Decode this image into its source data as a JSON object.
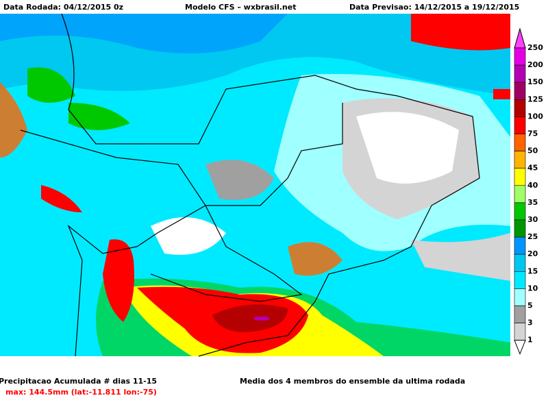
{
  "header": {
    "left": "Data Rodada: 04/12/2015 0z",
    "center": "Modelo CFS – wxbrasil.net",
    "right": "Data Previsao: 14/12/2015 a 19/12/2015"
  },
  "colorbar": {
    "labels": [
      250,
      200,
      150,
      125,
      100,
      75,
      50,
      45,
      40,
      35,
      30,
      25,
      20,
      15,
      10,
      5,
      3,
      1
    ],
    "colors": [
      "#ff40ff",
      "#e600e6",
      "#b400b4",
      "#a00064",
      "#b40000",
      "#ff0000",
      "#ff6400",
      "#ffb400",
      "#ffff00",
      "#a0ff64",
      "#00c800",
      "#009600",
      "#0096ff",
      "#00c8f0",
      "#00eaff",
      "#a0ffff",
      "#a0a0a0",
      "#d4d4d4",
      "#ffffff"
    ]
  },
  "footer": {
    "left": "Precipitacao Acumulada # dias 11-15",
    "right": "Media dos 4 membros do ensemble da ultima rodada",
    "max": "max: 144.5mm (lat:-11.811 lon:-75)"
  }
}
